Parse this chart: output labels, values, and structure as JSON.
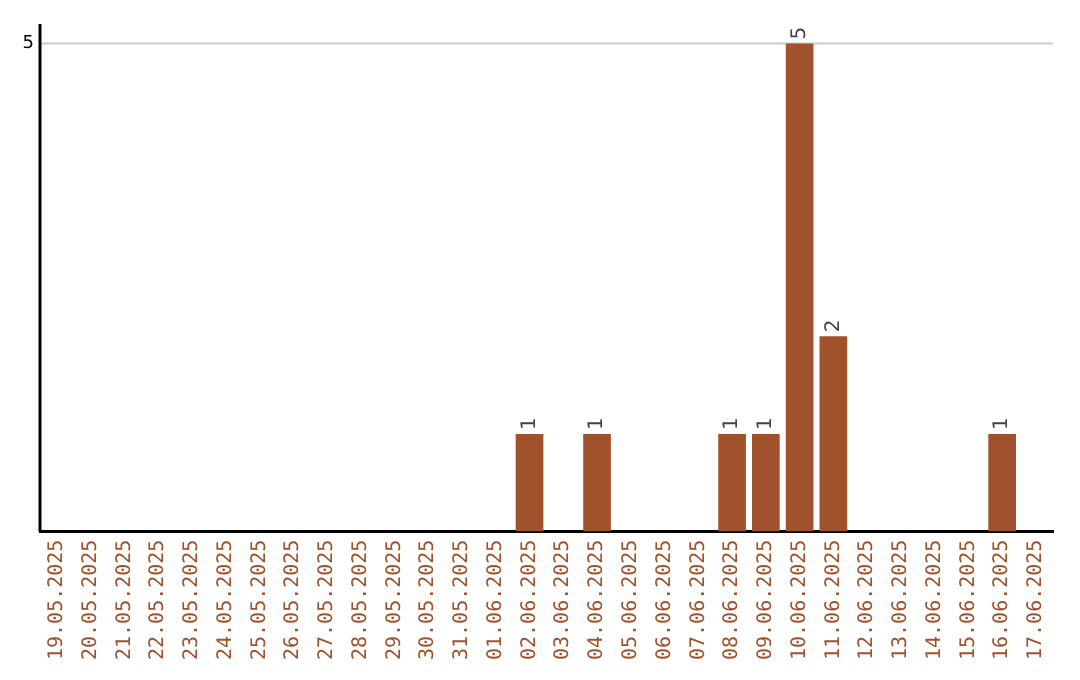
{
  "chart_data": {
    "type": "bar",
    "categories": [
      "19.05.2025",
      "20.05.2025",
      "21.05.2025",
      "22.05.2025",
      "23.05.2025",
      "24.05.2025",
      "25.05.2025",
      "26.05.2025",
      "27.05.2025",
      "28.05.2025",
      "29.05.2025",
      "30.05.2025",
      "31.05.2025",
      "01.06.2025",
      "02.06.2025",
      "03.06.2025",
      "04.06.2025",
      "05.06.2025",
      "06.06.2025",
      "07.06.2025",
      "08.06.2025",
      "09.06.2025",
      "10.06.2025",
      "11.06.2025",
      "12.06.2025",
      "13.06.2025",
      "14.06.2025",
      "15.06.2025",
      "16.06.2025",
      "17.06.2025"
    ],
    "values": [
      null,
      null,
      null,
      null,
      null,
      null,
      null,
      null,
      null,
      null,
      null,
      null,
      null,
      null,
      1,
      null,
      1,
      null,
      null,
      null,
      1,
      1,
      5,
      2,
      null,
      null,
      null,
      null,
      1,
      null
    ],
    "value_labels": [
      null,
      null,
      null,
      null,
      null,
      null,
      null,
      null,
      null,
      null,
      null,
      null,
      null,
      null,
      "1",
      null,
      "1",
      null,
      null,
      null,
      "1",
      "1",
      "5",
      "2",
      null,
      null,
      null,
      null,
      "1",
      null
    ],
    "ref_lines": [
      {
        "axis": "y",
        "value": 5,
        "label": "5",
        "color": "#cccccc"
      }
    ],
    "color": "#a0522d",
    "ylim": [
      0,
      5.2
    ],
    "tick_labels": "x",
    "legend": false
  }
}
